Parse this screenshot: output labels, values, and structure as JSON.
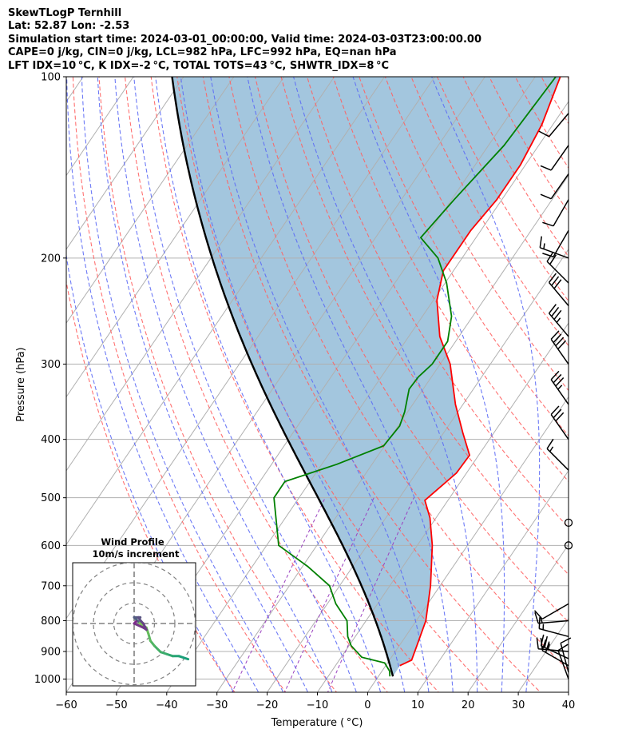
{
  "header": {
    "line1": "SkewTLogP Ternhill",
    "line2": "Lat: 52.87   Lon: -2.53",
    "line3": "Simulation start time: 2024-03-01_00:00:00, Valid time: 2024-03-03T23:00:00.00",
    "line4": "CAPE=0 j/kg, CIN=0 j/kg, LCL=982 hPa, LFC=992 hPa, EQ=nan hPa",
    "line5": "LFT IDX=10 °C, K IDX=-2 °C, TOTAL TOTS=43 °C, SHWTR_IDX=8 °C"
  },
  "chart_data": {
    "type": "skewt",
    "title": "SkewTLogP Ternhill",
    "xlabel": "Temperature ( °C)",
    "ylabel": "Pressure (hPa)",
    "xlim": [
      -60,
      40
    ],
    "ylim": [
      1050,
      100
    ],
    "xticks": [
      -60,
      -50,
      -40,
      -30,
      -20,
      -10,
      0,
      10,
      20,
      30,
      40
    ],
    "yticks": [
      1000,
      900,
      800,
      700,
      600,
      500,
      400,
      300,
      200,
      100
    ],
    "grid": true,
    "temperature": [
      {
        "p": 950,
        "t": 2.8
      },
      {
        "p": 930,
        "t": 4.4
      },
      {
        "p": 880,
        "t": 3.5
      },
      {
        "p": 800,
        "t": 1.9
      },
      {
        "p": 700,
        "t": -1.9
      },
      {
        "p": 600,
        "t": -7.0
      },
      {
        "p": 540,
        "t": -11.2
      },
      {
        "p": 505,
        "t": -14.6
      },
      {
        "p": 455,
        "t": -12.0
      },
      {
        "p": 425,
        "t": -11.8
      },
      {
        "p": 390,
        "t": -16.2
      },
      {
        "p": 350,
        "t": -21.5
      },
      {
        "p": 300,
        "t": -28.0
      },
      {
        "p": 270,
        "t": -33.8
      },
      {
        "p": 235,
        "t": -39.3
      },
      {
        "p": 210,
        "t": -42.0
      },
      {
        "p": 200,
        "t": -42.0
      },
      {
        "p": 180,
        "t": -42.0
      },
      {
        "p": 160,
        "t": -41.0
      },
      {
        "p": 140,
        "t": -41.0
      },
      {
        "p": 120,
        "t": -42.2
      },
      {
        "p": 100,
        "t": -45.0
      }
    ],
    "dewpoint": [
      {
        "p": 990,
        "t": 2.3
      },
      {
        "p": 970,
        "t": 1.5
      },
      {
        "p": 940,
        "t": -0.6
      },
      {
        "p": 920,
        "t": -5.9
      },
      {
        "p": 880,
        "t": -9.6
      },
      {
        "p": 850,
        "t": -11.5
      },
      {
        "p": 800,
        "t": -13.8
      },
      {
        "p": 750,
        "t": -18.3
      },
      {
        "p": 700,
        "t": -22.0
      },
      {
        "p": 650,
        "t": -29.0
      },
      {
        "p": 600,
        "t": -37.6
      },
      {
        "p": 500,
        "t": -45.0
      },
      {
        "p": 470,
        "t": -45.0
      },
      {
        "p": 440,
        "t": -37.0
      },
      {
        "p": 410,
        "t": -30.2
      },
      {
        "p": 380,
        "t": -29.7
      },
      {
        "p": 360,
        "t": -30.6
      },
      {
        "p": 330,
        "t": -32.8
      },
      {
        "p": 315,
        "t": -32.6
      },
      {
        "p": 300,
        "t": -31.6
      },
      {
        "p": 275,
        "t": -31.6
      },
      {
        "p": 250,
        "t": -34.2
      },
      {
        "p": 220,
        "t": -39.7
      },
      {
        "p": 200,
        "t": -44.8
      },
      {
        "p": 185,
        "t": -51.0
      },
      {
        "p": 160,
        "t": -49.5
      },
      {
        "p": 130,
        "t": -46.9
      },
      {
        "p": 100,
        "t": -45.9
      }
    ],
    "parcel_start": {
      "p": 990,
      "t": 2.9
    },
    "wind_barbs": [
      {
        "p": 1000,
        "speed_kt": 10,
        "dir_deg": 340
      },
      {
        "p": 975,
        "speed_kt": 10,
        "dir_deg": 345
      },
      {
        "p": 950,
        "speed_kt": 20,
        "dir_deg": 300
      },
      {
        "p": 925,
        "speed_kt": 25,
        "dir_deg": 295
      },
      {
        "p": 900,
        "speed_kt": 20,
        "dir_deg": 275
      },
      {
        "p": 850,
        "speed_kt": 15,
        "dir_deg": 285
      },
      {
        "p": 800,
        "speed_kt": 15,
        "dir_deg": 265
      },
      {
        "p": 750,
        "speed_kt": 10,
        "dir_deg": 240
      },
      {
        "p": 600,
        "speed_kt": 0,
        "dir_deg": 0
      },
      {
        "p": 550,
        "speed_kt": 0,
        "dir_deg": 0
      },
      {
        "p": 450,
        "speed_kt": 15,
        "dir_deg": 315
      },
      {
        "p": 400,
        "speed_kt": 30,
        "dir_deg": 325
      },
      {
        "p": 350,
        "speed_kt": 35,
        "dir_deg": 325
      },
      {
        "p": 300,
        "speed_kt": 40,
        "dir_deg": 325
      },
      {
        "p": 270,
        "speed_kt": 35,
        "dir_deg": 320
      },
      {
        "p": 240,
        "speed_kt": 30,
        "dir_deg": 320
      },
      {
        "p": 220,
        "speed_kt": 20,
        "dir_deg": 315
      },
      {
        "p": 200,
        "speed_kt": 15,
        "dir_deg": 290
      },
      {
        "p": 180,
        "speed_kt": 10,
        "dir_deg": 210
      },
      {
        "p": 160,
        "speed_kt": 10,
        "dir_deg": 210
      },
      {
        "p": 145,
        "speed_kt": 10,
        "dir_deg": 215
      },
      {
        "p": 130,
        "speed_kt": 10,
        "dir_deg": 215
      },
      {
        "p": 115,
        "speed_kt": 10,
        "dir_deg": 220
      }
    ],
    "hodograph": {
      "title": "Wind Profile",
      "subtitle": "10m/s increment",
      "rings_ms": [
        10,
        20,
        30
      ],
      "points": [
        {
          "u": 26.5,
          "v": -17.5
        },
        {
          "u": 22.0,
          "v": -16.0
        },
        {
          "u": 19.0,
          "v": -16.0
        },
        {
          "u": 16.0,
          "v": -15.0
        },
        {
          "u": 13.0,
          "v": -14.0
        },
        {
          "u": 10.0,
          "v": -11.0
        },
        {
          "u": 8.0,
          "v": -8.5
        },
        {
          "u": 7.0,
          "v": -5.0
        },
        {
          "u": 6.0,
          "v": -2.0
        },
        {
          "u": 4.0,
          "v": -1.0
        },
        {
          "u": 2.0,
          "v": 1.0
        },
        {
          "u": 0.0,
          "v": 3.0
        },
        {
          "u": 3.0,
          "v": 3.0
        },
        {
          "u": 2.0,
          "v": 3.0
        },
        {
          "u": 3.5,
          "v": 1.0
        },
        {
          "u": 4.5,
          "v": 0.0
        },
        {
          "u": 6.0,
          "v": -3.0
        },
        {
          "u": 4.5,
          "v": -2.0
        },
        {
          "u": 0.0,
          "v": 0.0
        },
        {
          "u": 1.0,
          "v": 1.0
        },
        {
          "u": 0.5,
          "v": 0.5
        }
      ]
    }
  },
  "colors": {
    "temperature": "#ff0000",
    "dewpoint": "#008000",
    "parcel": "#000000",
    "fill": "#a3c6de",
    "isotherm": "#b0b0b0",
    "dry_adiabat": "#ff6262",
    "moist_adiabat": "#5d6cf5",
    "hodo_start": "#1a9f79",
    "hodo_end": "#7d2b89"
  }
}
